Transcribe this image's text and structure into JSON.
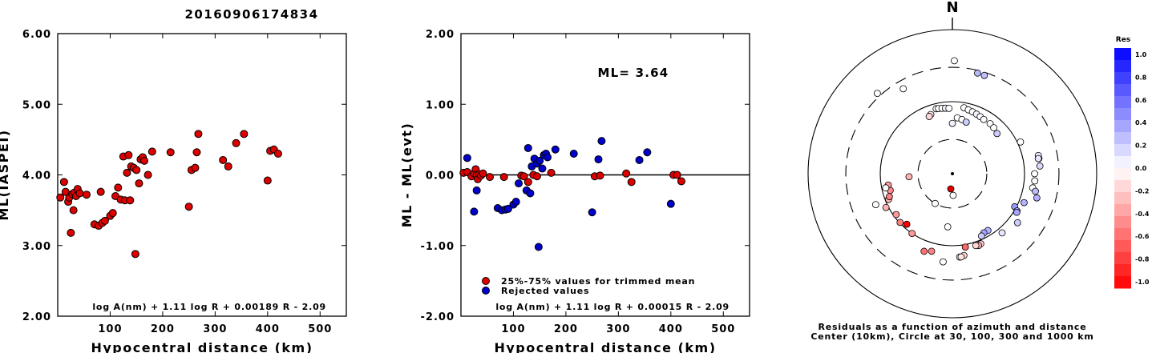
{
  "title": "20160906174834",
  "chart_data": [
    {
      "type": "scatter",
      "xlabel": "Hypocentral distance (km)",
      "ylabel": "ML(IASPEI)",
      "xlim": [
        0,
        550
      ],
      "ylim": [
        2.0,
        6.0
      ],
      "xticks": [
        "100",
        "200",
        "300",
        "400",
        "500"
      ],
      "yticks": [
        "2.00",
        "3.00",
        "4.00",
        "5.00",
        "6.00"
      ],
      "annotation": "log A(nm) + 1.11 log R + 0.00189 R - 2.09",
      "marker_color": "#dd0000",
      "points": [
        [
          5,
          3.68
        ],
        [
          12,
          3.9
        ],
        [
          15,
          3.76
        ],
        [
          20,
          3.62
        ],
        [
          22,
          3.68
        ],
        [
          25,
          3.18
        ],
        [
          28,
          3.73
        ],
        [
          30,
          3.5
        ],
        [
          32,
          3.75
        ],
        [
          35,
          3.7
        ],
        [
          38,
          3.8
        ],
        [
          42,
          3.74
        ],
        [
          55,
          3.72
        ],
        [
          70,
          3.3
        ],
        [
          78,
          3.28
        ],
        [
          82,
          3.76
        ],
        [
          85,
          3.32
        ],
        [
          90,
          3.35
        ],
        [
          100,
          3.42
        ],
        [
          105,
          3.46
        ],
        [
          110,
          3.7
        ],
        [
          115,
          3.82
        ],
        [
          120,
          3.65
        ],
        [
          125,
          4.26
        ],
        [
          128,
          3.64
        ],
        [
          132,
          4.03
        ],
        [
          135,
          4.28
        ],
        [
          138,
          3.64
        ],
        [
          140,
          4.12
        ],
        [
          145,
          4.1
        ],
        [
          148,
          2.88
        ],
        [
          150,
          4.07
        ],
        [
          155,
          3.88
        ],
        [
          158,
          4.22
        ],
        [
          162,
          4.25
        ],
        [
          165,
          4.2
        ],
        [
          172,
          4.0
        ],
        [
          180,
          4.33
        ],
        [
          215,
          4.32
        ],
        [
          250,
          3.55
        ],
        [
          255,
          4.07
        ],
        [
          262,
          4.1
        ],
        [
          265,
          4.32
        ],
        [
          268,
          4.58
        ],
        [
          315,
          4.21
        ],
        [
          325,
          4.12
        ],
        [
          340,
          4.45
        ],
        [
          355,
          4.58
        ],
        [
          400,
          3.92
        ],
        [
          405,
          4.34
        ],
        [
          412,
          4.36
        ],
        [
          420,
          4.3
        ]
      ]
    },
    {
      "type": "scatter",
      "xlabel": "Hypocentral distance (km)",
      "ylabel": "ML - ML(evt)",
      "xlim": [
        0,
        550
      ],
      "ylim": [
        -2.0,
        2.0
      ],
      "xticks": [
        "100",
        "200",
        "300",
        "400",
        "500"
      ],
      "yticks": [
        "-2.00",
        "-1.00",
        "0.00",
        "1.00",
        "2.00"
      ],
      "ml_label": "ML= 3.64",
      "annotation": "log A(nm) + 1.11 log R + 0.00015 R - 2.09",
      "legend": [
        {
          "label": "25%-75% values for trimmed mean",
          "color": "#dd0000"
        },
        {
          "label": "Rejected values",
          "color": "#0000cc"
        }
      ],
      "series": [
        {
          "name": "25%-75% values for trimmed mean",
          "color": "#dd0000",
          "points": [
            [
              5,
              0.03
            ],
            [
              12,
              0.04
            ],
            [
              20,
              -0.02
            ],
            [
              25,
              0.02
            ],
            [
              28,
              0.08
            ],
            [
              30,
              0.0
            ],
            [
              32,
              -0.06
            ],
            [
              35,
              0.01
            ],
            [
              38,
              -0.01
            ],
            [
              42,
              0.02
            ],
            [
              55,
              -0.03
            ],
            [
              82,
              -0.03
            ],
            [
              115,
              -0.01
            ],
            [
              120,
              -0.02
            ],
            [
              128,
              -0.1
            ],
            [
              138,
              0.0
            ],
            [
              145,
              -0.02
            ],
            [
              172,
              0.03
            ],
            [
              255,
              -0.02
            ],
            [
              265,
              -0.01
            ],
            [
              315,
              0.02
            ],
            [
              325,
              -0.1
            ],
            [
              405,
              0.0
            ],
            [
              412,
              0.0
            ],
            [
              420,
              -0.09
            ]
          ]
        },
        {
          "name": "Rejected values",
          "color": "#0000cc",
          "points": [
            [
              12,
              0.24
            ],
            [
              25,
              -0.52
            ],
            [
              30,
              -0.22
            ],
            [
              70,
              -0.47
            ],
            [
              78,
              -0.5
            ],
            [
              85,
              -0.49
            ],
            [
              90,
              -0.48
            ],
            [
              100,
              -0.42
            ],
            [
              105,
              -0.38
            ],
            [
              110,
              -0.12
            ],
            [
              125,
              -0.22
            ],
            [
              128,
              0.38
            ],
            [
              132,
              -0.26
            ],
            [
              135,
              0.12
            ],
            [
              140,
              0.23
            ],
            [
              145,
              0.16
            ],
            [
              148,
              -1.02
            ],
            [
              150,
              0.2
            ],
            [
              155,
              0.09
            ],
            [
              158,
              0.28
            ],
            [
              162,
              0.3
            ],
            [
              165,
              0.25
            ],
            [
              180,
              0.36
            ],
            [
              215,
              0.3
            ],
            [
              250,
              -0.53
            ],
            [
              262,
              0.22
            ],
            [
              268,
              0.48
            ],
            [
              340,
              0.21
            ],
            [
              355,
              0.32
            ],
            [
              400,
              -0.41
            ]
          ]
        }
      ]
    }
  ],
  "polar": {
    "north_label": "N",
    "caption_line1": "Residuals as a function of azimuth and distance",
    "caption_line2": "Center (10km), Circle at 30, 100, 300 and 1000 km",
    "colorbar_title": "Res",
    "colorbar_ticks": [
      "1.0",
      "0.8",
      "0.6",
      "0.4",
      "0.2",
      "0.0",
      "-0.2",
      "-0.4",
      "-0.6",
      "-0.8",
      "-1.0"
    ],
    "event_marker_color": "#dd0000",
    "stations": [
      {
        "az": 1,
        "dist": 370,
        "res": 0.0
      },
      {
        "az": 14,
        "dist": 275,
        "res": 0.28
      },
      {
        "az": 18,
        "dist": 272,
        "res": 0.25
      },
      {
        "az": 330,
        "dist": 230,
        "res": 0.0
      },
      {
        "az": 317,
        "dist": 335,
        "res": 0.0
      },
      {
        "az": 346,
        "dist": 85,
        "res": 0.0
      },
      {
        "az": 348,
        "dist": 84,
        "res": 0.0
      },
      {
        "az": 351,
        "dist": 83,
        "res": 0.0
      },
      {
        "az": 354,
        "dist": 82,
        "res": 0.05
      },
      {
        "az": 357,
        "dist": 81,
        "res": 0.0
      },
      {
        "az": 340,
        "dist": 75,
        "res": -0.1
      },
      {
        "az": 338,
        "dist": 72,
        "res": -0.15
      },
      {
        "az": 10,
        "dist": 85,
        "res": 0.0
      },
      {
        "az": 14,
        "dist": 82,
        "res": 0.0
      },
      {
        "az": 18,
        "dist": 80,
        "res": 0.0
      },
      {
        "az": 22,
        "dist": 78,
        "res": 0.05
      },
      {
        "az": 26,
        "dist": 76,
        "res": 0.0
      },
      {
        "az": 30,
        "dist": 74,
        "res": 0.0
      },
      {
        "az": 5,
        "dist": 60,
        "res": 0.0
      },
      {
        "az": 10,
        "dist": 58,
        "res": 0.0
      },
      {
        "az": 15,
        "dist": 55,
        "res": 0.2
      },
      {
        "az": 360,
        "dist": 50,
        "res": 0.05
      },
      {
        "az": 37,
        "dist": 74,
        "res": 0.0
      },
      {
        "az": 42,
        "dist": 72,
        "res": 0.0
      },
      {
        "az": 48,
        "dist": 68,
        "res": 0.2
      },
      {
        "az": 65,
        "dist": 110,
        "res": 0.0
      },
      {
        "az": 80,
        "dist": 165,
        "res": 0.0
      },
      {
        "az": 95,
        "dist": 140,
        "res": 0.0
      },
      {
        "az": 100,
        "dist": 135,
        "res": 0.0
      },
      {
        "az": 78,
        "dist": 165,
        "res": 0.1
      },
      {
        "az": 80,
        "dist": 162,
        "res": 0.1
      },
      {
        "az": 90,
        "dist": 138,
        "res": 0.0
      },
      {
        "az": 102,
        "dist": 150,
        "res": 0.25
      },
      {
        "az": 85,
        "dist": 165,
        "res": 0.15
      },
      {
        "az": 106,
        "dist": 165,
        "res": 0.3
      },
      {
        "az": 118,
        "dist": 95,
        "res": 0.4
      },
      {
        "az": 120,
        "dist": 108,
        "res": 0.3
      },
      {
        "az": 121,
        "dist": 110,
        "res": 0.35
      },
      {
        "az": 112,
        "dist": 118,
        "res": 0.3
      },
      {
        "az": 127,
        "dist": 135,
        "res": 0.2
      },
      {
        "az": 140,
        "dist": 118,
        "res": 0.1
      },
      {
        "az": 148,
        "dist": 85,
        "res": 0.3
      },
      {
        "az": 152,
        "dist": 85,
        "res": 0.35
      },
      {
        "az": 155,
        "dist": 90,
        "res": 0.2
      },
      {
        "az": 158,
        "dist": 112,
        "res": -0.2
      },
      {
        "az": 160,
        "dist": 115,
        "res": -0.3
      },
      {
        "az": 162,
        "dist": 112,
        "res": -0.15
      },
      {
        "az": 170,
        "dist": 108,
        "res": -0.6
      },
      {
        "az": 172,
        "dist": 140,
        "res": -0.15
      },
      {
        "az": 175,
        "dist": 145,
        "res": 0.0
      },
      {
        "az": 174,
        "dist": 145,
        "res": -0.1
      },
      {
        "az": 186,
        "dist": 170,
        "res": 0.0
      },
      {
        "az": 185,
        "dist": 55,
        "res": 0.0
      },
      {
        "az": 178,
        "dist": 20,
        "res": 0.0
      },
      {
        "az": 195,
        "dist": 130,
        "res": -0.5
      },
      {
        "az": 200,
        "dist": 140,
        "res": -0.55
      },
      {
        "az": 214,
        "dist": 100,
        "res": -0.4
      },
      {
        "az": 222,
        "dist": 88,
        "res": -1.0
      },
      {
        "az": 227,
        "dist": 98,
        "res": -0.5
      },
      {
        "az": 234,
        "dist": 92,
        "res": -0.4
      },
      {
        "az": 243,
        "dist": 108,
        "res": -0.3
      },
      {
        "az": 248,
        "dist": 90,
        "res": -0.3
      },
      {
        "az": 250,
        "dist": 85,
        "res": -0.5
      },
      {
        "az": 255,
        "dist": 78,
        "res": -0.45
      },
      {
        "az": 260,
        "dist": 80,
        "res": -0.4
      },
      {
        "az": 266,
        "dist": 40,
        "res": -0.3
      },
      {
        "az": 258,
        "dist": 88,
        "res": 0.0
      },
      {
        "az": 248,
        "dist": 140,
        "res": 0.0
      },
      {
        "az": 210,
        "dist": 30,
        "res": 0.0
      }
    ]
  }
}
